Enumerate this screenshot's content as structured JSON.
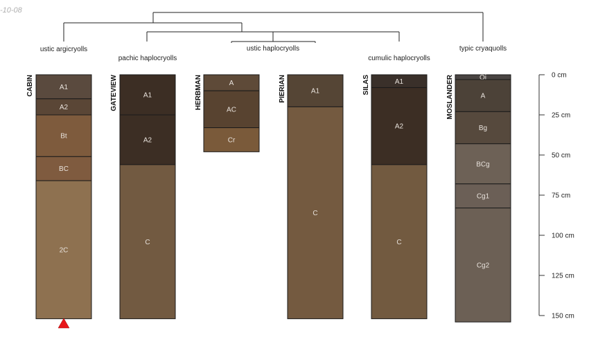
{
  "date_label": "-10-08",
  "depth_axis": {
    "ticks": [
      "0 cm",
      "25 cm",
      "50 cm",
      "75 cm",
      "100 cm",
      "125 cm",
      "150 cm"
    ],
    "tick_values": [
      0,
      25,
      50,
      75,
      100,
      125,
      150
    ],
    "max_depth": 150
  },
  "profiles": [
    {
      "id": "cabin",
      "name": "CABIN",
      "taxon": "ustic argicryolls",
      "marker": true,
      "horizons": [
        {
          "name": "A1",
          "top": 0,
          "bottom": 15,
          "color": "#5a4a3e"
        },
        {
          "name": "A2",
          "top": 15,
          "bottom": 25,
          "color": "#5a4636"
        },
        {
          "name": "Bt",
          "top": 25,
          "bottom": 51,
          "color": "#7e5b3d"
        },
        {
          "name": "BC",
          "top": 51,
          "bottom": 66,
          "color": "#7f5b3f"
        },
        {
          "name": "2C",
          "top": 66,
          "bottom": 152,
          "color": "#8e7150"
        }
      ]
    },
    {
      "id": "gateview",
      "name": "GATEVIEW",
      "taxon": "pachic haplocryolls",
      "marker": false,
      "horizons": [
        {
          "name": "A1",
          "top": 0,
          "bottom": 25,
          "color": "#3c2e24"
        },
        {
          "name": "A2",
          "top": 25,
          "bottom": 56,
          "color": "#3c2e24"
        },
        {
          "name": "C",
          "top": 56,
          "bottom": 152,
          "color": "#725a41"
        }
      ]
    },
    {
      "id": "herbman",
      "name": "HERBMAN",
      "taxon": "ustic haplocryolls",
      "marker": false,
      "horizons": [
        {
          "name": "A",
          "top": 0,
          "bottom": 10,
          "color": "#5e4a38"
        },
        {
          "name": "AC",
          "top": 10,
          "bottom": 33,
          "color": "#584330"
        },
        {
          "name": "Cr",
          "top": 33,
          "bottom": 48,
          "color": "#7a5a3a"
        }
      ]
    },
    {
      "id": "pierian",
      "name": "PIERIAN",
      "taxon": "",
      "marker": false,
      "horizons": [
        {
          "name": "A1",
          "top": 0,
          "bottom": 20,
          "color": "#554535"
        },
        {
          "name": "C",
          "top": 20,
          "bottom": 152,
          "color": "#745a40"
        }
      ]
    },
    {
      "id": "silas",
      "name": "SILAS",
      "taxon": "cumulic haplocryolls",
      "marker": false,
      "horizons": [
        {
          "name": "A1",
          "top": 0,
          "bottom": 8,
          "color": "#3a302a"
        },
        {
          "name": "A2",
          "top": 8,
          "bottom": 56,
          "color": "#3c2e24"
        },
        {
          "name": "C",
          "top": 56,
          "bottom": 152,
          "color": "#725a40"
        }
      ]
    },
    {
      "id": "moslander",
      "name": "MOSLANDER",
      "taxon": "typic cryaquolls",
      "marker": false,
      "horizons": [
        {
          "name": "Oi",
          "top": 0,
          "bottom": 3,
          "color": "#494442"
        },
        {
          "name": "A",
          "top": 3,
          "bottom": 23,
          "color": "#4c4238"
        },
        {
          "name": "Bg",
          "top": 23,
          "bottom": 43,
          "color": "#56493d"
        },
        {
          "name": "BCg",
          "top": 43,
          "bottom": 68,
          "color": "#6d6156"
        },
        {
          "name": "Cg1",
          "top": 68,
          "bottom": 83,
          "color": "#6b5f56"
        },
        {
          "name": "Cg2",
          "top": 83,
          "bottom": 154,
          "color": "#6c6055"
        }
      ]
    }
  ],
  "colors": {
    "horizon_border": "#1a1a1a",
    "horizon_text": "#e8e2dc",
    "tree_line": "#222222",
    "label_text": "#222222",
    "marker": "#e8161a",
    "date_text": "#b0b0b0"
  }
}
